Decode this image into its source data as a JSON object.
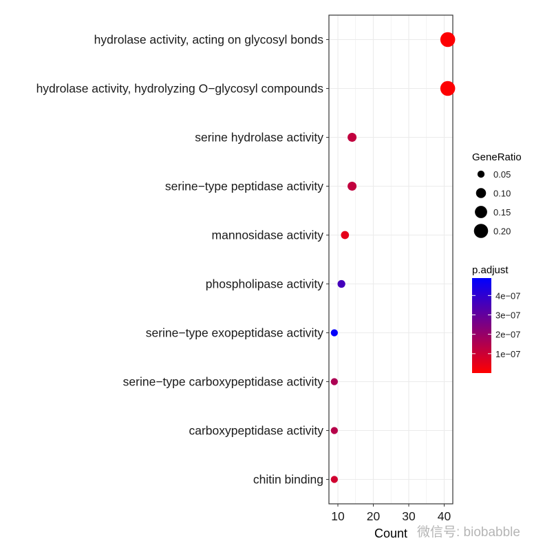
{
  "chart_data": {
    "type": "scatter",
    "xlabel": "Count",
    "ylabel": "",
    "xlim": [
      8.5,
      43.5
    ],
    "xticks": [
      "10",
      "20",
      "30",
      "40"
    ],
    "xtick_values": [
      10,
      20,
      30,
      40
    ],
    "grid": true,
    "categories": [
      "hydrolase activity, acting on glycosyl bonds",
      "hydrolase activity, hydrolyzing O−glycosyl compounds",
      "serine hydrolase activity",
      "serine−type peptidase activity",
      "mannosidase activity",
      "phospholipase activity",
      "serine−type exopeptidase activity",
      "serine−type carboxypeptidase activity",
      "carboxypeptidase activity",
      "chitin binding"
    ],
    "count": [
      41,
      41,
      14,
      14,
      12,
      11,
      9,
      9,
      9,
      9
    ],
    "gene_ratio": [
      0.22,
      0.22,
      0.08,
      0.08,
      0.065,
      0.06,
      0.05,
      0.05,
      0.05,
      0.05
    ],
    "p_adjust": [
      3e-09,
      3e-09,
      1.2e-07,
      1.2e-07,
      5e-08,
      3.6e-07,
      4.8e-07,
      1.6e-07,
      1.4e-07,
      9e-08
    ],
    "size_legend": {
      "title": "GeneRatio",
      "labels": [
        "0.05",
        "0.10",
        "0.15",
        "0.20"
      ],
      "values": [
        0.05,
        0.1,
        0.15,
        0.2
      ]
    },
    "color_legend": {
      "title": "p.adjust",
      "labels": [
        "4e−07",
        "3e−07",
        "2e−07",
        "1e−07"
      ],
      "values": [
        4e-07,
        3e-07,
        2e-07,
        1e-07
      ],
      "range": [
        0,
        4.9e-07
      ],
      "low_color": "#FF0000",
      "high_color": "#0000FF"
    }
  },
  "watermark": "微信号: biobabble"
}
